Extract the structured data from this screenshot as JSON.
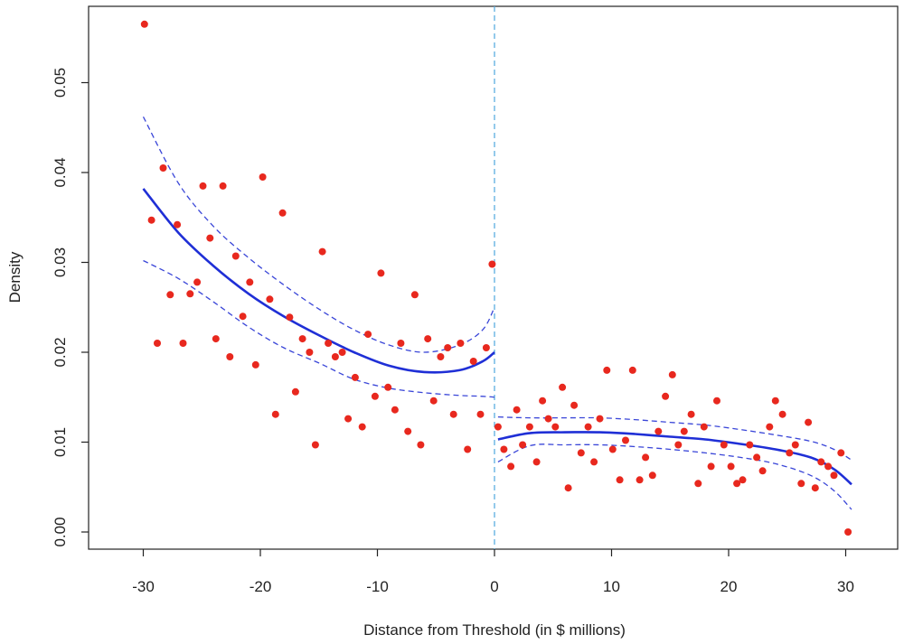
{
  "chart_data": {
    "type": "scatter",
    "title": "",
    "xlabel": "Distance from Threshold (in $ millions)",
    "ylabel": "Density",
    "xlim": [
      -35,
      35
    ],
    "ylim": [
      -0.002,
      0.058
    ],
    "x_ticks": [
      {
        "value": -30,
        "label": "-30"
      },
      {
        "value": -20,
        "label": "-20"
      },
      {
        "value": -10,
        "label": "-10"
      },
      {
        "value": 0,
        "label": "0"
      },
      {
        "value": 10,
        "label": "10"
      },
      {
        "value": 20,
        "label": "20"
      },
      {
        "value": 30,
        "label": "30"
      }
    ],
    "y_ticks": [
      {
        "value": 0.0,
        "label": "0.00"
      },
      {
        "value": 0.01,
        "label": "0.01"
      },
      {
        "value": 0.02,
        "label": "0.02"
      },
      {
        "value": 0.03,
        "label": "0.03"
      },
      {
        "value": 0.04,
        "label": "0.04"
      },
      {
        "value": 0.05,
        "label": "0.05"
      }
    ],
    "threshold_x": 0,
    "grid": false,
    "colors": {
      "points": "#e8281e",
      "fit": "#1f2fd6",
      "ci": "#3a46d8",
      "threshold": "#5aaee0",
      "axis": "#222222"
    },
    "points": [
      [
        -29.9,
        0.0565
      ],
      [
        -29.3,
        0.0347
      ],
      [
        -28.8,
        0.021
      ],
      [
        -28.3,
        0.0405
      ],
      [
        -27.7,
        0.0264
      ],
      [
        -27.1,
        0.0342
      ],
      [
        -26.6,
        0.021
      ],
      [
        -26.0,
        0.0265
      ],
      [
        -25.4,
        0.0278
      ],
      [
        -24.9,
        0.0385
      ],
      [
        -24.3,
        0.0327
      ],
      [
        -23.8,
        0.0215
      ],
      [
        -23.2,
        0.0385
      ],
      [
        -22.6,
        0.0195
      ],
      [
        -22.1,
        0.0307
      ],
      [
        -21.5,
        0.024
      ],
      [
        -20.9,
        0.0278
      ],
      [
        -20.4,
        0.0186
      ],
      [
        -19.8,
        0.0395
      ],
      [
        -19.2,
        0.0259
      ],
      [
        -18.7,
        0.0131
      ],
      [
        -18.1,
        0.0355
      ],
      [
        -17.5,
        0.0239
      ],
      [
        -17.0,
        0.0156
      ],
      [
        -16.4,
        0.0215
      ],
      [
        -15.8,
        0.02
      ],
      [
        -15.3,
        0.0097
      ],
      [
        -14.7,
        0.0312
      ],
      [
        -14.2,
        0.021
      ],
      [
        -13.6,
        0.0195
      ],
      [
        -13.0,
        0.02
      ],
      [
        -12.5,
        0.0126
      ],
      [
        -11.9,
        0.0172
      ],
      [
        -11.3,
        0.0117
      ],
      [
        -10.8,
        0.022
      ],
      [
        -10.2,
        0.0151
      ],
      [
        -9.7,
        0.0288
      ],
      [
        -9.1,
        0.0161
      ],
      [
        -8.5,
        0.0136
      ],
      [
        -8.0,
        0.021
      ],
      [
        -7.4,
        0.0112
      ],
      [
        -6.8,
        0.0264
      ],
      [
        -6.3,
        0.0097
      ],
      [
        -5.7,
        0.0215
      ],
      [
        -5.2,
        0.0146
      ],
      [
        -4.6,
        0.0195
      ],
      [
        -4.0,
        0.0205
      ],
      [
        -3.5,
        0.0131
      ],
      [
        -2.9,
        0.021
      ],
      [
        -2.3,
        0.0092
      ],
      [
        -1.8,
        0.019
      ],
      [
        -1.2,
        0.0131
      ],
      [
        -0.7,
        0.0205
      ],
      [
        -0.2,
        0.0298
      ],
      [
        0.3,
        0.0117
      ],
      [
        0.8,
        0.0092
      ],
      [
        1.4,
        0.0073
      ],
      [
        1.9,
        0.0136
      ],
      [
        2.4,
        0.0097
      ],
      [
        3.0,
        0.0117
      ],
      [
        3.6,
        0.0078
      ],
      [
        4.1,
        0.0146
      ],
      [
        4.6,
        0.0126
      ],
      [
        5.2,
        0.0117
      ],
      [
        5.8,
        0.0161
      ],
      [
        6.3,
        0.0049
      ],
      [
        6.8,
        0.0141
      ],
      [
        7.4,
        0.0088
      ],
      [
        8.0,
        0.0117
      ],
      [
        8.5,
        0.0078
      ],
      [
        9.0,
        0.0126
      ],
      [
        9.6,
        0.018
      ],
      [
        10.1,
        0.0092
      ],
      [
        10.7,
        0.0058
      ],
      [
        11.2,
        0.0102
      ],
      [
        11.8,
        0.018
      ],
      [
        12.4,
        0.0058
      ],
      [
        12.9,
        0.0083
      ],
      [
        13.5,
        0.0063
      ],
      [
        14.0,
        0.0112
      ],
      [
        14.6,
        0.0151
      ],
      [
        15.2,
        0.0175
      ],
      [
        15.7,
        0.0097
      ],
      [
        16.2,
        0.0112
      ],
      [
        16.8,
        0.0131
      ],
      [
        17.4,
        0.0054
      ],
      [
        17.9,
        0.0117
      ],
      [
        18.5,
        0.0073
      ],
      [
        19.0,
        0.0146
      ],
      [
        19.6,
        0.0097
      ],
      [
        20.2,
        0.0073
      ],
      [
        20.7,
        0.0054
      ],
      [
        21.2,
        0.0058
      ],
      [
        21.8,
        0.0097
      ],
      [
        22.4,
        0.0083
      ],
      [
        22.9,
        0.0068
      ],
      [
        23.5,
        0.0117
      ],
      [
        24.0,
        0.0146
      ],
      [
        24.6,
        0.0131
      ],
      [
        25.2,
        0.0088
      ],
      [
        25.7,
        0.0097
      ],
      [
        26.2,
        0.0054
      ],
      [
        26.8,
        0.0122
      ],
      [
        27.4,
        0.0049
      ],
      [
        27.9,
        0.0078
      ],
      [
        28.5,
        0.0073
      ],
      [
        29.0,
        0.0063
      ],
      [
        29.6,
        0.0088
      ],
      [
        30.2,
        0.0
      ]
    ],
    "left_fit": {
      "x": [
        -30,
        -27,
        -24,
        -21,
        -18,
        -15,
        -12,
        -9,
        -6,
        -3,
        -1,
        0
      ],
      "y": [
        0.0382,
        0.0333,
        0.0296,
        0.0265,
        0.024,
        0.0219,
        0.02,
        0.0185,
        0.0178,
        0.018,
        0.019,
        0.02
      ],
      "upper": [
        0.0462,
        0.0388,
        0.034,
        0.0305,
        0.0275,
        0.0248,
        0.0225,
        0.0208,
        0.02,
        0.0208,
        0.0225,
        0.025
      ],
      "lower": [
        0.0302,
        0.0282,
        0.0256,
        0.0228,
        0.0205,
        0.0188,
        0.017,
        0.016,
        0.0155,
        0.0152,
        0.0151,
        0.015
      ]
    },
    "right_fit": {
      "x": [
        0.3,
        3,
        6,
        9,
        12,
        15,
        18,
        21,
        24,
        27,
        29,
        30.5
      ],
      "y": [
        0.0103,
        0.011,
        0.0111,
        0.0111,
        0.0109,
        0.0106,
        0.0103,
        0.0098,
        0.0092,
        0.0083,
        0.007,
        0.0053
      ],
      "upper": [
        0.0128,
        0.0127,
        0.0127,
        0.0127,
        0.0125,
        0.0122,
        0.0119,
        0.0114,
        0.0108,
        0.0101,
        0.0092,
        0.008
      ],
      "lower": [
        0.0078,
        0.0096,
        0.0097,
        0.0097,
        0.0095,
        0.0092,
        0.0088,
        0.0083,
        0.0076,
        0.0063,
        0.0046,
        0.0025
      ]
    }
  }
}
